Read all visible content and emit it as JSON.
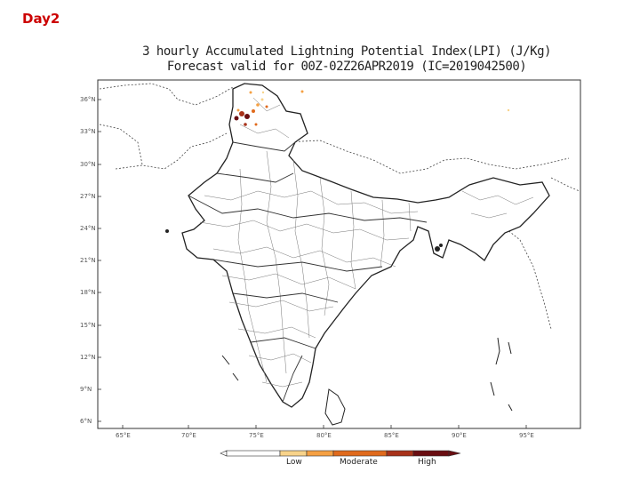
{
  "slide": {
    "label": "Day2"
  },
  "title": {
    "line1": "3 hourly Accumulated Lightning Potential Index(LPI) (J/Kg)",
    "line2": "Forecast valid for 00Z-02Z26APR2019 (IC=2019042500)"
  },
  "axes": {
    "lat_labels": [
      "36°N",
      "33°N",
      "30°N",
      "27°N",
      "24°N",
      "21°N",
      "18°N",
      "15°N",
      "12°N",
      "9°N",
      "6°N"
    ],
    "lon_labels": [
      "65°E",
      "70°E",
      "75°E",
      "80°E",
      "85°E",
      "90°E",
      "95°E"
    ]
  },
  "colorbar": {
    "labels": [
      "Low",
      "Moderate",
      "High"
    ],
    "colors": [
      "#f8d38a",
      "#f5a043",
      "#e06a1c",
      "#a8321a",
      "#6a0e12"
    ]
  },
  "map_features": {
    "region": "India and surrounding region",
    "lightning_hotspots": [
      "Jammu & Kashmir (high)",
      "Bangladesh (low)"
    ]
  }
}
